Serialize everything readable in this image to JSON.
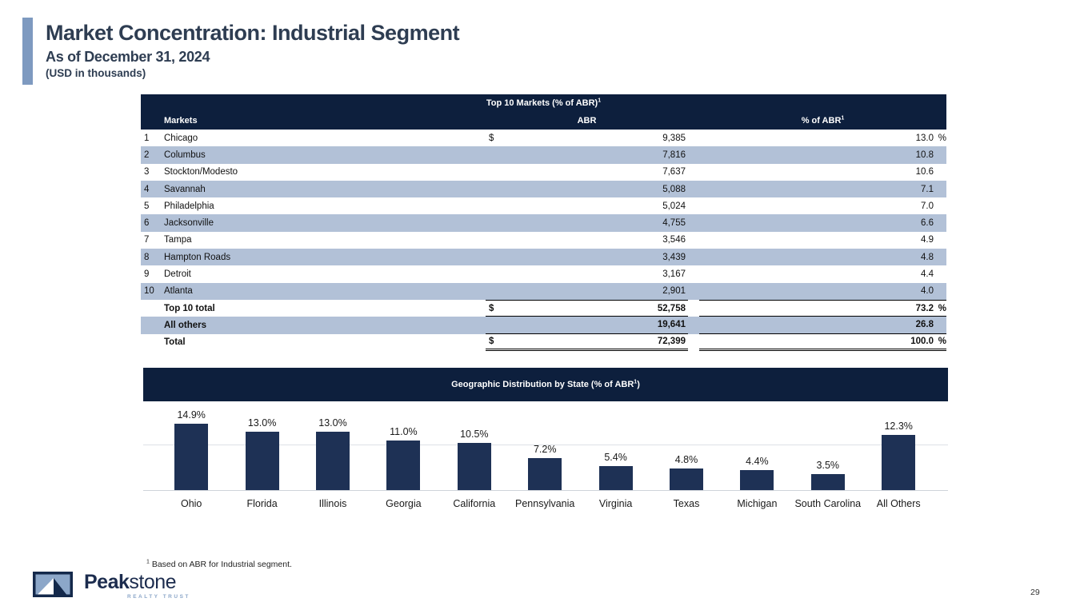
{
  "slide": {
    "title": "Market Concentration: Industrial Segment",
    "subtitle": "As of December 31, 2024",
    "unit_note": "(USD in thousands)",
    "page_number": "29",
    "footnote_sup": "1",
    "footnote_text": "Based on ABR for Industrial segment."
  },
  "table": {
    "title": "Top 10 Markets (% of ABR)",
    "title_sup": "1",
    "columns": {
      "markets": "Markets",
      "abr": "ABR",
      "pct": "% of ABR",
      "pct_sup": "1"
    },
    "rows": [
      {
        "rank": "1",
        "market": "Chicago",
        "dollar": "$",
        "abr": "9,385",
        "pct": "13.0",
        "suffix": "%"
      },
      {
        "rank": "2",
        "market": "Columbus",
        "dollar": "",
        "abr": "7,816",
        "pct": "10.8",
        "suffix": ""
      },
      {
        "rank": "3",
        "market": "Stockton/Modesto",
        "dollar": "",
        "abr": "7,637",
        "pct": "10.6",
        "suffix": ""
      },
      {
        "rank": "4",
        "market": "Savannah",
        "dollar": "",
        "abr": "5,088",
        "pct": "7.1",
        "suffix": ""
      },
      {
        "rank": "5",
        "market": "Philadelphia",
        "dollar": "",
        "abr": "5,024",
        "pct": "7.0",
        "suffix": ""
      },
      {
        "rank": "6",
        "market": "Jacksonville",
        "dollar": "",
        "abr": "4,755",
        "pct": "6.6",
        "suffix": ""
      },
      {
        "rank": "7",
        "market": "Tampa",
        "dollar": "",
        "abr": "3,546",
        "pct": "4.9",
        "suffix": ""
      },
      {
        "rank": "8",
        "market": "Hampton Roads",
        "dollar": "",
        "abr": "3,439",
        "pct": "4.8",
        "suffix": ""
      },
      {
        "rank": "9",
        "market": "Detroit",
        "dollar": "",
        "abr": "3,167",
        "pct": "4.4",
        "suffix": ""
      },
      {
        "rank": "10",
        "market": "Atlanta",
        "dollar": "",
        "abr": "2,901",
        "pct": "4.0",
        "suffix": ""
      }
    ],
    "totals": [
      {
        "label": "Top 10 total",
        "dollar": "$",
        "abr": "52,758",
        "pct": "73.2",
        "suffix": "%"
      },
      {
        "label": "All others",
        "dollar": "",
        "abr": "19,641",
        "pct": "26.8",
        "suffix": ""
      },
      {
        "label": "Total",
        "dollar": "$",
        "abr": "72,399",
        "pct": "100.0",
        "suffix": "%"
      }
    ]
  },
  "chart_data": {
    "type": "bar",
    "title": "Geographic Distribution by State (% of ABR",
    "title_sup": "1",
    "title_close": ")",
    "categories": [
      "Ohio",
      "Florida",
      "Illinois",
      "Georgia",
      "California",
      "Pennsylvania",
      "Virginia",
      "Texas",
      "Michigan",
      "South Carolina",
      "All Others"
    ],
    "values": [
      14.9,
      13.0,
      13.0,
      11.0,
      10.5,
      7.2,
      5.4,
      4.8,
      4.4,
      3.5,
      12.3
    ],
    "labels": [
      "14.9%",
      "13.0%",
      "13.0%",
      "11.0%",
      "10.5%",
      "7.2%",
      "5.4%",
      "4.8%",
      "4.4%",
      "3.5%",
      "12.3%"
    ],
    "xlabel": "",
    "ylabel": "",
    "ylim": [
      0,
      20
    ],
    "gridlines_pct": [
      10
    ],
    "grid": "on",
    "legend": "none",
    "bar_color": "#1e3155"
  },
  "logo": {
    "brand_bold": "Peak",
    "brand_light": "stone",
    "tagline": "REALTY TRUST"
  },
  "colors": {
    "band_navy": "#0d1f3d",
    "bar_navy": "#1e3155",
    "row_stripe": "#b2c1d7",
    "accent_steel": "#7e9ac0",
    "title_text": "#2e3d52",
    "logo_sky": "#8ca7c9"
  }
}
